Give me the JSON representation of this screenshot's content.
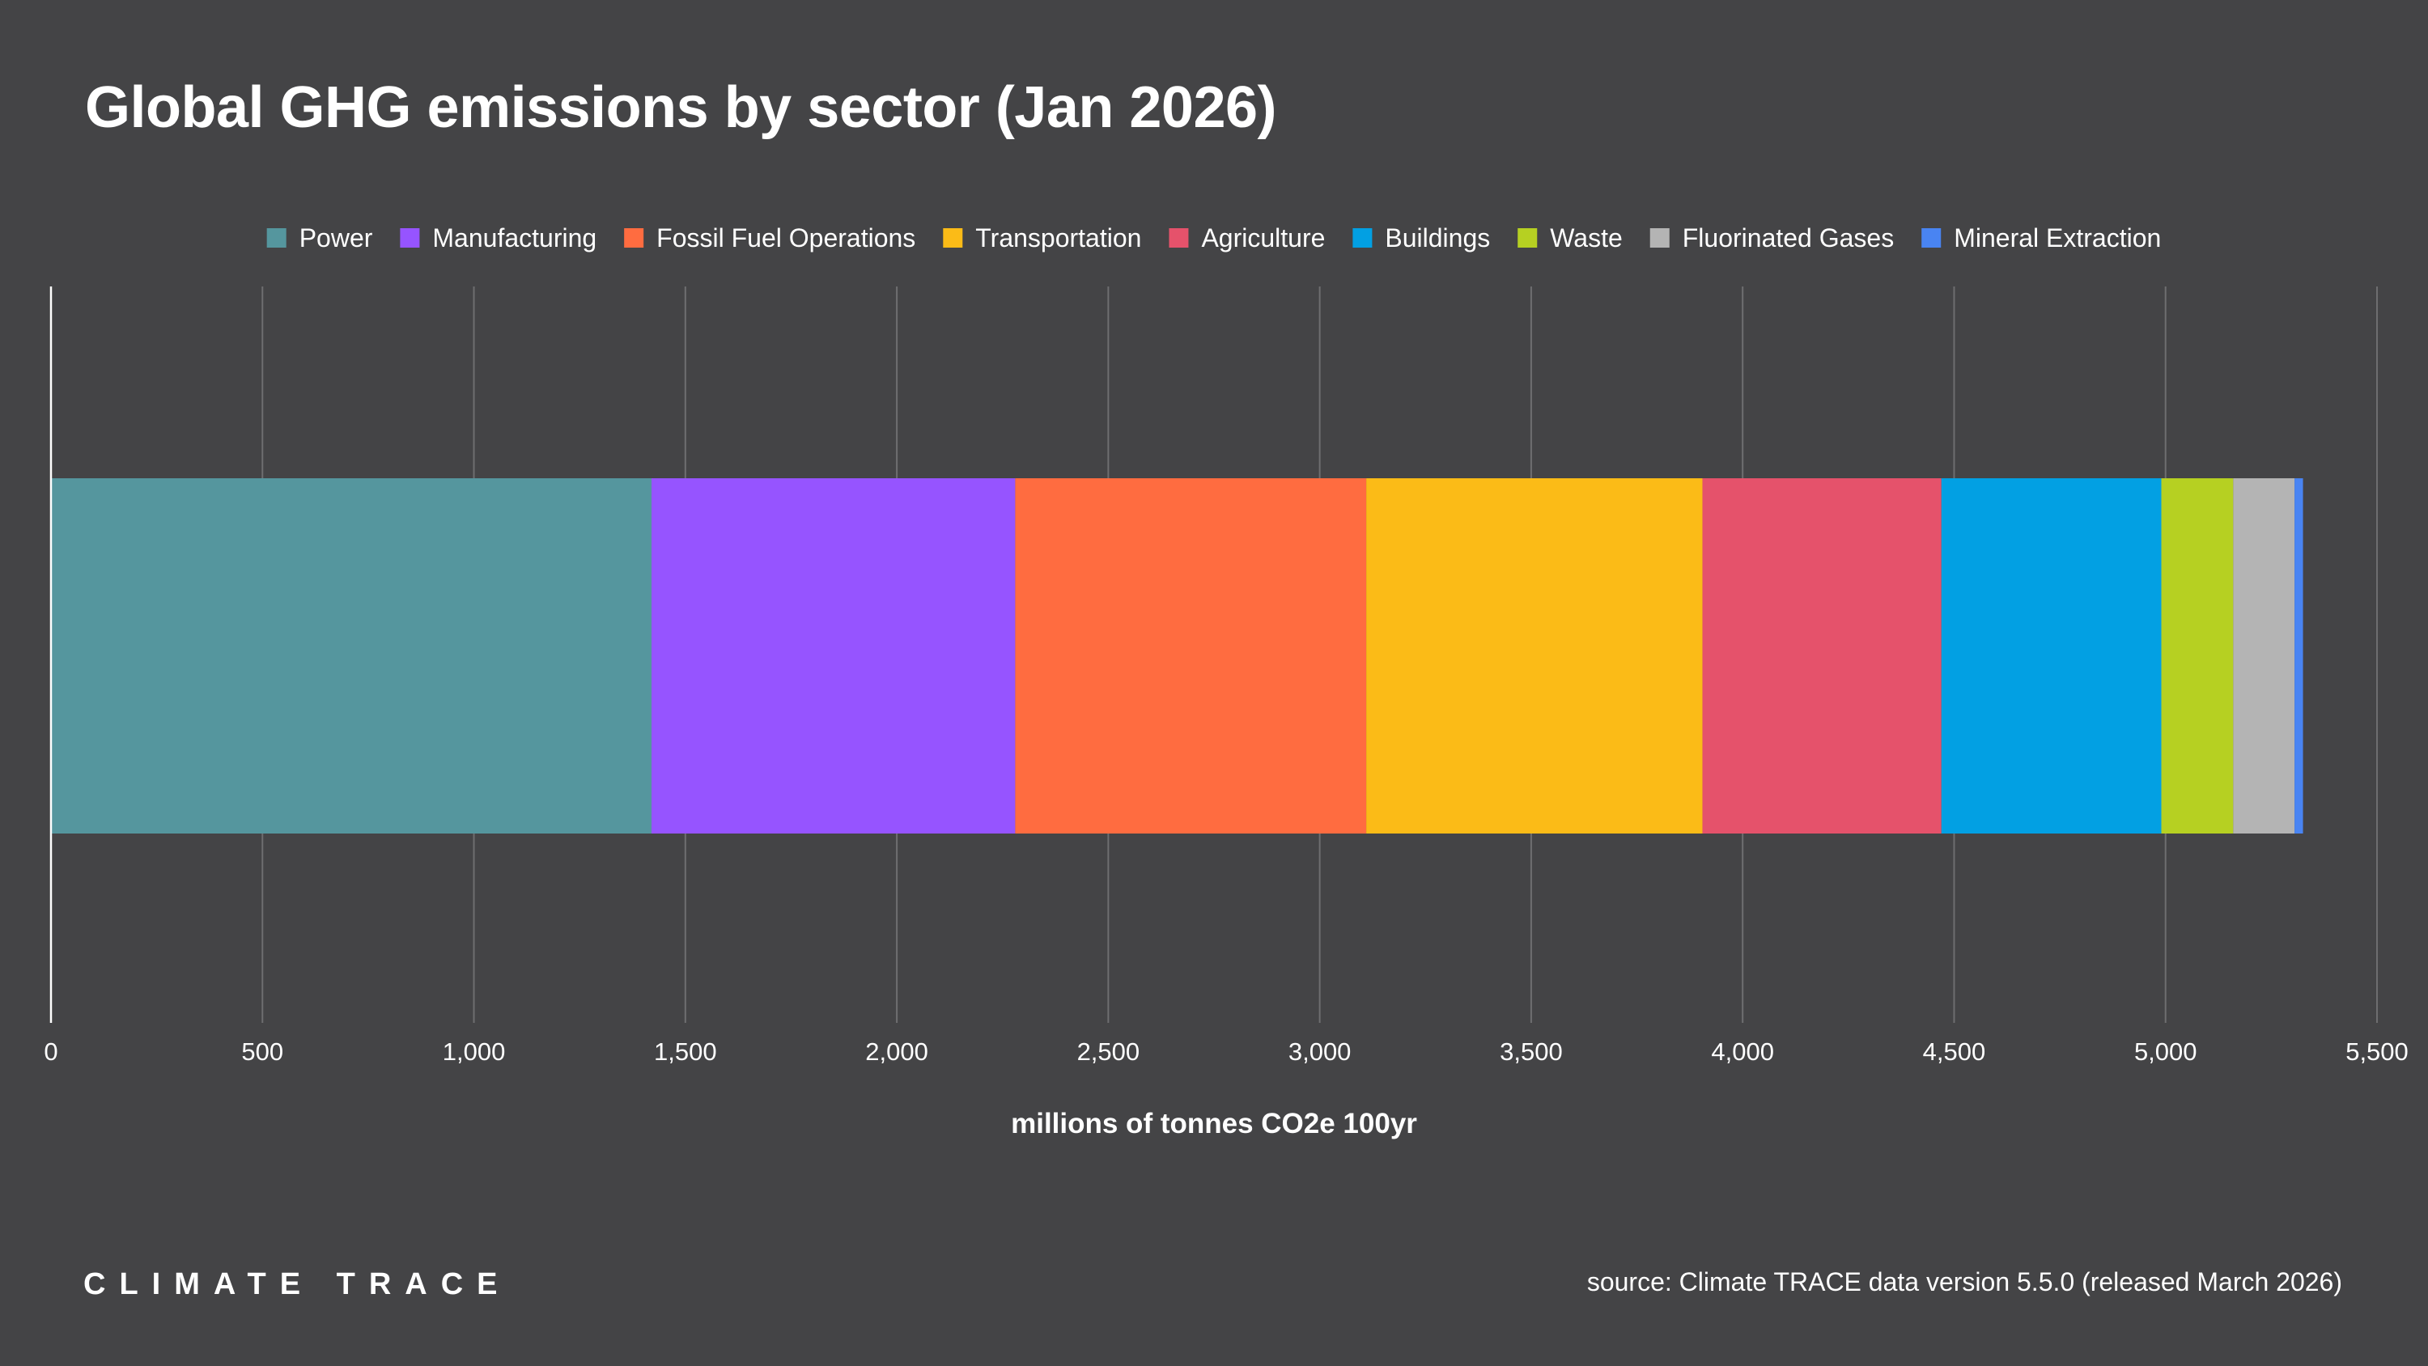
{
  "chart_data": {
    "type": "bar",
    "orientation": "horizontal",
    "stacked": true,
    "title": "Global GHG emissions by sector (Jan 2026)",
    "xlabel": "millions of tonnes CO2e 100yr",
    "ylabel": "",
    "xlim": [
      0,
      5500
    ],
    "xticks": [
      0,
      500,
      1000,
      1500,
      2000,
      2500,
      3000,
      3500,
      4000,
      4500,
      5000,
      5500
    ],
    "xtick_labels": [
      "0",
      "500",
      "1,000",
      "1,500",
      "2,000",
      "2,500",
      "3,000",
      "3,500",
      "4,000",
      "4,500",
      "5,000",
      "5,500"
    ],
    "grid": true,
    "legend_position": "top-center",
    "series": [
      {
        "name": "Power",
        "value": 1420,
        "color": "#55969e"
      },
      {
        "name": "Manufacturing",
        "value": 860,
        "color": "#9654ff"
      },
      {
        "name": "Fossil Fuel Operations",
        "value": 830,
        "color": "#ff6c40"
      },
      {
        "name": "Transportation",
        "value": 795,
        "color": "#fbbb17"
      },
      {
        "name": "Agriculture",
        "value": 565,
        "color": "#e5526b"
      },
      {
        "name": "Buildings",
        "value": 520,
        "color": "#02a0e3"
      },
      {
        "name": "Waste",
        "value": 170,
        "color": "#b6d022"
      },
      {
        "name": "Fluorinated Gases",
        "value": 145,
        "color": "#b4b4b4"
      },
      {
        "name": "Mineral Extraction",
        "value": 20,
        "color": "#4984f2"
      }
    ]
  },
  "footer": {
    "brand": "CLIMATE TRACE",
    "source": "source: Climate TRACE data version 5.5.0 (released March 2026)"
  }
}
